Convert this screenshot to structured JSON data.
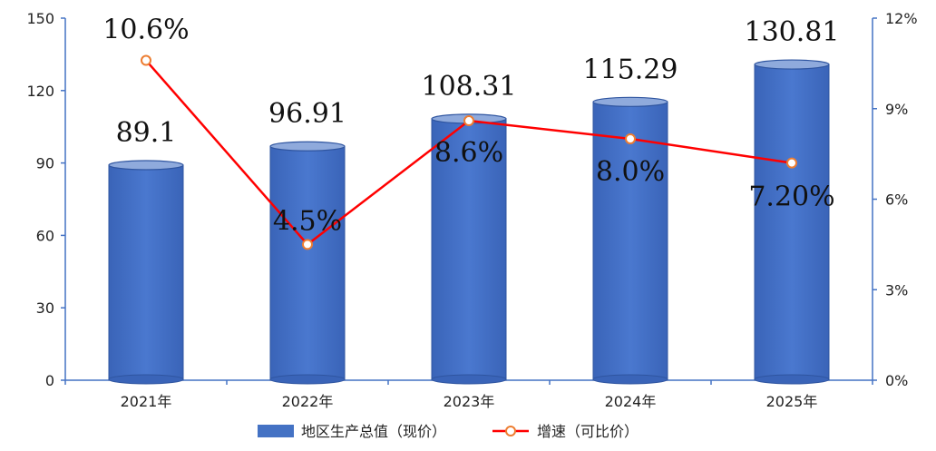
{
  "chart_data": {
    "type": "bar",
    "categories": [
      "2021年",
      "2022年",
      "2023年",
      "2024年",
      "2025年"
    ],
    "series": [
      {
        "name": "地区生产总值（现价）",
        "type": "bar",
        "axis": "left",
        "values": [
          89.1,
          96.91,
          108.31,
          115.29,
          130.81
        ],
        "labels": [
          "89.1",
          "96.91",
          "108.31",
          "115.29",
          "130.81"
        ],
        "color": "#4472C4"
      },
      {
        "name": "增速（可比价）",
        "type": "line",
        "axis": "right",
        "values": [
          10.6,
          4.5,
          8.6,
          8.0,
          7.2
        ],
        "labels": [
          "10.6%",
          "4.5%",
          "8.6%",
          "8.0%",
          "7.20%"
        ],
        "color": "#FF0000",
        "marker_color": "#ED7D31"
      }
    ],
    "y_left": {
      "min": 0,
      "max": 150,
      "ticks": [
        "0",
        "30",
        "60",
        "90",
        "120",
        "150"
      ]
    },
    "y_right": {
      "min": 0,
      "max": 12,
      "ticks": [
        "0%",
        "3%",
        "6%",
        "9%",
        "12%"
      ]
    },
    "legend_position": "bottom",
    "grid": false
  }
}
